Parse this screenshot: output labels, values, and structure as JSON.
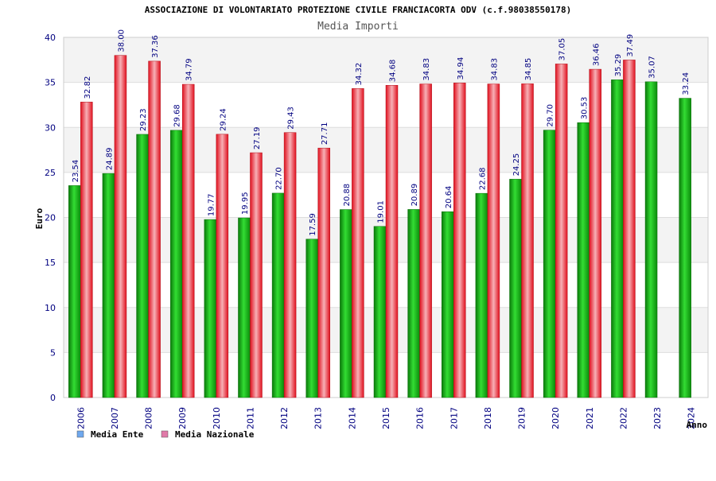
{
  "chart_data": {
    "type": "bar",
    "title": "ASSOCIAZIONE DI VOLONTARIATO PROTEZIONE CIVILE FRANCIACORTA ODV (c.f.98038550178)",
    "subtitle": "Media Importi",
    "xlabel": "Anno",
    "ylabel": "Euro",
    "ylim": [
      0,
      40
    ],
    "yticks": [
      0,
      5,
      10,
      15,
      20,
      25,
      30,
      35,
      40
    ],
    "grid": true,
    "legend_position": "bottom-left",
    "categories": [
      "2006",
      "2007",
      "2008",
      "2009",
      "2010",
      "2011",
      "2012",
      "2013",
      "2014",
      "2015",
      "2016",
      "2017",
      "2018",
      "2019",
      "2020",
      "2021",
      "2022",
      "2023",
      "2024"
    ],
    "series": [
      {
        "name": "Media Ente",
        "color": "#1fb01f",
        "legend_color": "#6fa8ee",
        "values": [
          23.54,
          24.89,
          29.23,
          29.68,
          19.77,
          19.95,
          22.7,
          17.59,
          20.88,
          19.01,
          20.89,
          20.64,
          22.68,
          24.25,
          29.7,
          30.53,
          35.29,
          35.07,
          33.24
        ],
        "labels": [
          "23.54",
          "24.89",
          "29.23",
          "29.68",
          "19.77",
          "19.95",
          "22.70",
          "17.59",
          "20.88",
          "19.01",
          "20.89",
          "20.64",
          "22.68",
          "24.25",
          "29.70",
          "30.53",
          "35.29",
          "35.07",
          "33.24"
        ]
      },
      {
        "name": "Media Nazionale",
        "color": "#e8283a",
        "legend_color": "#e07aa8",
        "values": [
          32.82,
          38.0,
          37.36,
          34.79,
          29.24,
          27.19,
          29.43,
          27.71,
          34.32,
          34.68,
          34.83,
          34.94,
          34.83,
          34.85,
          37.05,
          36.46,
          37.49,
          null,
          null
        ],
        "labels": [
          "32.82",
          "38.00",
          "37.36",
          "34.79",
          "29.24",
          "27.19",
          "29.43",
          "27.71",
          "34.32",
          "34.68",
          "34.83",
          "34.94",
          "34.83",
          "34.85",
          "37.05",
          "36.46",
          "37.49",
          null,
          null
        ]
      }
    ]
  }
}
